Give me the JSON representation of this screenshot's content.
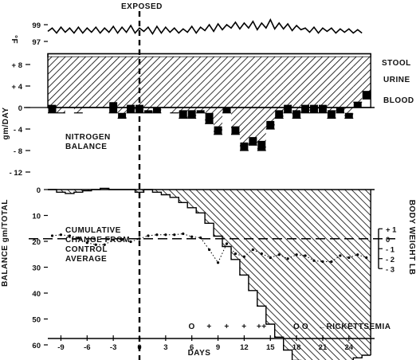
{
  "chart_data": [
    {
      "type": "line",
      "panel": "temperature",
      "ylabel": "°F",
      "yticks": [
        97,
        99
      ],
      "ylim": [
        96.5,
        100.5
      ],
      "x_start": -10.5,
      "x_step": 0.5,
      "values": [
        98.2,
        98.6,
        98.0,
        98.7,
        98.1,
        98.6,
        98.0,
        98.7,
        98.0,
        98.6,
        98.1,
        98.7,
        98.0,
        98.6,
        98.1,
        98.8,
        98.0,
        98.7,
        98.1,
        98.9,
        98.0,
        98.6,
        98.2,
        98.7,
        97.9,
        98.8,
        98.0,
        98.7,
        98.1,
        98.6,
        98.0,
        98.5,
        98.1,
        98.8,
        98.0,
        98.7,
        98.3,
        99.0,
        98.2,
        99.1,
        98.4,
        99.0,
        98.6,
        99.3,
        98.5,
        99.2,
        98.6,
        99.4,
        98.4,
        99.2,
        98.6,
        99.6,
        98.5,
        99.2,
        98.5,
        99.1,
        98.3,
        98.9,
        98.4,
        98.6,
        98.1,
        98.7,
        98.0,
        98.6,
        98.2,
        98.6,
        98.0,
        98.5,
        98.1,
        98.5,
        98.0,
        98.4,
        98.0
      ]
    },
    {
      "type": "bar",
      "panel": "nitrogen balance",
      "title": "NITROGEN BALANCE",
      "ylabel": "gm/DAY",
      "ytick_labels": [
        "+ 8",
        "+ 4",
        "0",
        "- 4",
        "- 8",
        "- 12"
      ],
      "yticks": [
        8,
        4,
        0,
        -4,
        -8,
        -12
      ],
      "ylim": [
        -12,
        10
      ],
      "intake": 10,
      "legend": [
        "STOOL",
        "URINE",
        "BLOOD"
      ],
      "days": [
        -10,
        -9,
        -8,
        -7,
        -6,
        -5,
        -4,
        -3,
        -2,
        -1,
        0,
        1,
        2,
        3,
        4,
        5,
        6,
        7,
        8,
        9,
        10,
        11,
        12,
        13,
        14,
        15,
        16,
        17,
        18,
        19,
        20,
        21,
        22,
        23,
        24,
        25,
        26
      ],
      "balance": [
        -1,
        -1,
        0,
        -1,
        0,
        0,
        0,
        -1,
        -2,
        -1,
        -1,
        -1,
        -1,
        0,
        -1,
        -2,
        -2,
        -1,
        -3,
        -5,
        -1,
        -5,
        -8,
        -7,
        -8,
        -4,
        -2,
        -1,
        -2,
        -1,
        -1,
        -1,
        -2,
        -1,
        -2,
        1,
        3
      ],
      "blood": [
        1.5,
        0,
        0,
        0,
        0,
        0,
        0,
        2,
        1,
        1.5,
        1.5,
        0.5,
        1,
        0,
        0,
        1.5,
        1.5,
        0.5,
        2,
        1.5,
        1,
        1.5,
        1.5,
        1.5,
        1.8,
        1.5,
        1.5,
        1.5,
        1.5,
        1.5,
        1.5,
        1.5,
        1.5,
        1,
        1,
        1,
        1.5
      ]
    },
    {
      "type": "area",
      "panel": "cumulative balance",
      "title": "CUMULATIVE CHANGE FROM CONTROL AVERAGE",
      "ylabel": "BALANCE gm/TOTAL",
      "xlabel": "DAYS",
      "xticks": [
        -9,
        -6,
        -3,
        0,
        3,
        6,
        9,
        12,
        15,
        18,
        21,
        24
      ],
      "yticks": [
        0,
        10,
        20,
        30,
        40,
        50,
        60,
        70
      ],
      "ylim": [
        0,
        72
      ],
      "control_average": 19,
      "cumulative": {
        "days": [
          -10,
          -9,
          -8,
          -7,
          -6,
          -5,
          -4,
          -3,
          -2,
          -1,
          0,
          1,
          2,
          3,
          4,
          5,
          6,
          7,
          8,
          9,
          10,
          11,
          12,
          13,
          14,
          15,
          16,
          17,
          18,
          19,
          20,
          21,
          22,
          23,
          24,
          25,
          26
        ],
        "values": [
          0,
          1,
          1.5,
          1,
          0.5,
          0,
          -0.5,
          0,
          0,
          0,
          1,
          0,
          1,
          2,
          3,
          5,
          7,
          9,
          13,
          18,
          22,
          27,
          33,
          39,
          45,
          52,
          57,
          62,
          66,
          68,
          70,
          71,
          70,
          68,
          67,
          65,
          64
        ]
      },
      "body_weight": {
        "label": "BODY WEIGHT LB",
        "yticks": [
          "+ 1",
          "0",
          "- 1",
          "- 2",
          "- 3"
        ],
        "ylim": [
          1,
          -3
        ],
        "days": [
          -10,
          -9,
          -8,
          -7,
          -6,
          -5,
          -4,
          -3,
          -2,
          -1,
          0,
          1,
          2,
          3,
          4,
          5,
          6,
          7,
          8,
          9,
          10,
          11,
          12,
          13,
          14,
          15,
          16,
          17,
          18,
          19,
          20,
          21,
          22,
          23,
          24,
          25,
          26
        ],
        "values": [
          0.3,
          0.4,
          0.3,
          0.1,
          -0.4,
          -0.6,
          -0.6,
          -0.1,
          -0.1,
          -0.3,
          0.0,
          0.3,
          0.4,
          0.4,
          0.4,
          0.5,
          0.2,
          0.1,
          -1.1,
          -2.4,
          -0.5,
          -1.5,
          -1.8,
          -1.1,
          -1.5,
          -1.9,
          -1.6,
          -2.0,
          -1.6,
          -1.7,
          -2.2,
          -2.3,
          -2.3,
          -1.7,
          -1.9,
          -1.6,
          -1.9
        ]
      }
    }
  ],
  "annotations": {
    "exposed_label": "EXPOSED",
    "exposed_day": 0,
    "stool": "STOOL",
    "urine": "URINE",
    "blood": "BLOOD",
    "rickettsemia_label": "←RICKETTSEMIA",
    "rickettsemia": [
      {
        "day": 6,
        "mark": "O"
      },
      {
        "day": 8,
        "mark": "+"
      },
      {
        "day": 10,
        "mark": "+"
      },
      {
        "day": 12,
        "mark": "+"
      },
      {
        "day": 14,
        "mark": "++"
      },
      {
        "day": 18,
        "mark": "O"
      },
      {
        "day": 19,
        "mark": "O"
      }
    ]
  }
}
